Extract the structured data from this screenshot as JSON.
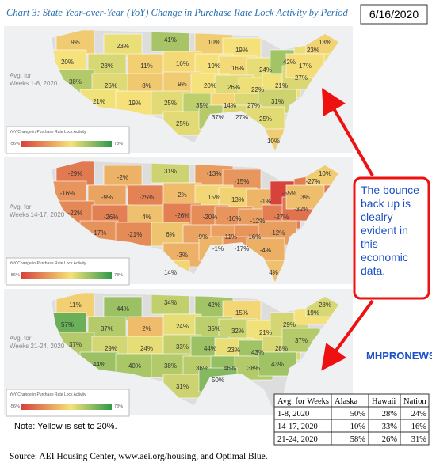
{
  "header": {
    "title": "Chart 3: State Year-over-Year (YoY) Change in Purchase Rate Lock Activity by Period",
    "date": "6/16/2020"
  },
  "maps": [
    {
      "period": "Avg. for Weeks 1-8, 2020",
      "legend": {
        "title": "YoY Change in Purchase Rate Lock Activity",
        "min": "-56%",
        "max": "73%"
      },
      "labels": [
        "9%",
        "23%",
        "41%",
        "10%",
        "19%",
        "20%",
        "28%",
        "11%",
        "16%",
        "19%",
        "16%",
        "24%",
        "42%",
        "23%",
        "13%",
        "38%",
        "26%",
        "8%",
        "9%",
        "20%",
        "26%",
        "22%",
        "21%",
        "27%",
        "21%",
        "19%",
        "25%",
        "35%",
        "14%",
        "27%",
        "31%",
        "25%",
        "37%",
        "27%",
        "25%",
        "10%",
        "17%"
      ]
    },
    {
      "period": "Avg. for Weeks 14-17, 2020",
      "legend": {
        "title": "YoY Change in Purchase Rate Lock Activity",
        "min": "-56%",
        "max": "73%"
      },
      "labels": [
        "-29%",
        "-2%",
        "31%",
        "-13%",
        "-15%",
        "-16%",
        "-9%",
        "-25%",
        "2%",
        "15%",
        "13%",
        "-1%",
        "-55%",
        "-27%",
        "10%",
        "-22%",
        "-26%",
        "4%",
        "-26%",
        "-20%",
        "-16%",
        "-12%",
        "-27%",
        "-32%",
        "-17%",
        "-21%",
        "6%",
        "-9%",
        "-11%",
        "-16%",
        "-12%",
        "-3%",
        "-1%",
        "-17%",
        "-4%",
        "4%",
        "3%",
        "14%"
      ]
    },
    {
      "period": "Avg. for Weeks 21-24, 2020",
      "legend": {
        "title": "YoY Change in Purchase Rate Lock Activity",
        "min": "-56%",
        "max": "73%"
      },
      "labels": [
        "11%",
        "44%",
        "34%",
        "42%",
        "15%",
        "57%",
        "37%",
        "2%",
        "24%",
        "35%",
        "32%",
        "21%",
        "29%",
        "19%",
        "28%",
        "37%",
        "29%",
        "24%",
        "33%",
        "44%",
        "23%",
        "43%",
        "28%",
        "37%",
        "44%",
        "40%",
        "38%",
        "36%",
        "46%",
        "38%",
        "43%",
        "31%",
        "50%"
      ]
    }
  ],
  "callout": "The bounce back up is clealry evident in this economic data.",
  "note": "Note: Yellow is set to 20%.",
  "logo": "MHPRONEWS",
  "table": {
    "header": [
      "Avg. for Weeks",
      "Alaska",
      "Hawaii",
      "Nation"
    ],
    "rows": [
      [
        "1-8, 2020",
        "50%",
        "28%",
        "24%"
      ],
      [
        "14-17, 2020",
        "-10%",
        "-33%",
        "-16%"
      ],
      [
        "21-24, 2020",
        "58%",
        "26%",
        "31%"
      ]
    ]
  },
  "source": "Source: AEI Housing Center, www.aei.org/housing, and Optimal Blue."
}
